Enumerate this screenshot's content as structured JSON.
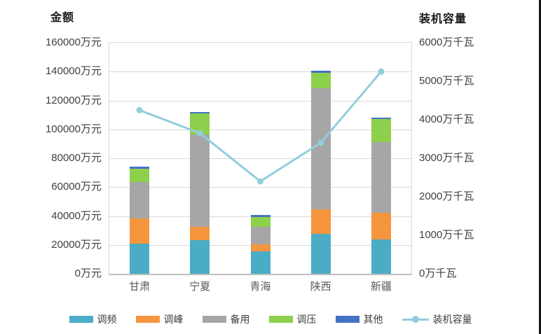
{
  "chart_data": {
    "type": "bar",
    "subtype": "stacked-columns-with-line-overlay",
    "categories": [
      "甘肃",
      "宁夏",
      "青海",
      "陕西",
      "新疆"
    ],
    "bar_series": [
      {
        "name": "调频",
        "color": "#4BACC6",
        "values": [
          21000,
          23500,
          15500,
          27500,
          24000
        ]
      },
      {
        "name": "调峰",
        "color": "#F5953E",
        "values": [
          17500,
          9000,
          5000,
          17000,
          18000
        ]
      },
      {
        "name": "备用",
        "color": "#A6A6A6",
        "values": [
          25000,
          64000,
          12000,
          84000,
          49000
        ]
      },
      {
        "name": "调压",
        "color": "#8DD04C",
        "values": [
          9000,
          14500,
          7000,
          10500,
          16000
        ]
      },
      {
        "name": "其他",
        "color": "#4472C4",
        "values": [
          1500,
          1000,
          1000,
          1500,
          1000
        ]
      }
    ],
    "line_series": {
      "name": "装机容量",
      "color": "#92CDDC",
      "values": [
        4250,
        3650,
        2400,
        3400,
        5250
      ]
    },
    "left_axis": {
      "title": "金额",
      "unit": "万元",
      "min": 0,
      "max": 160000,
      "step": 20000,
      "ticks": [
        "160000万元",
        "140000万元",
        "120000万元",
        "100000万元",
        "80000万元",
        "60000万元",
        "40000万元",
        "20000万元",
        "0万元"
      ]
    },
    "right_axis": {
      "title": "装机容量",
      "unit": "万千瓦",
      "min": 0,
      "max": 6000,
      "step": 1000,
      "ticks": [
        "6000万千瓦",
        "5000万千瓦",
        "4000万千瓦",
        "3000万千瓦",
        "2000万千瓦",
        "1000万千瓦",
        "0万千瓦"
      ]
    },
    "grid": true,
    "legend_position": "bottom",
    "colors": {
      "gridline": "#D9D9D9",
      "axis_line": "#BFBFBF",
      "tick_text": "#404040",
      "title_text": "#1A1A1A"
    }
  }
}
